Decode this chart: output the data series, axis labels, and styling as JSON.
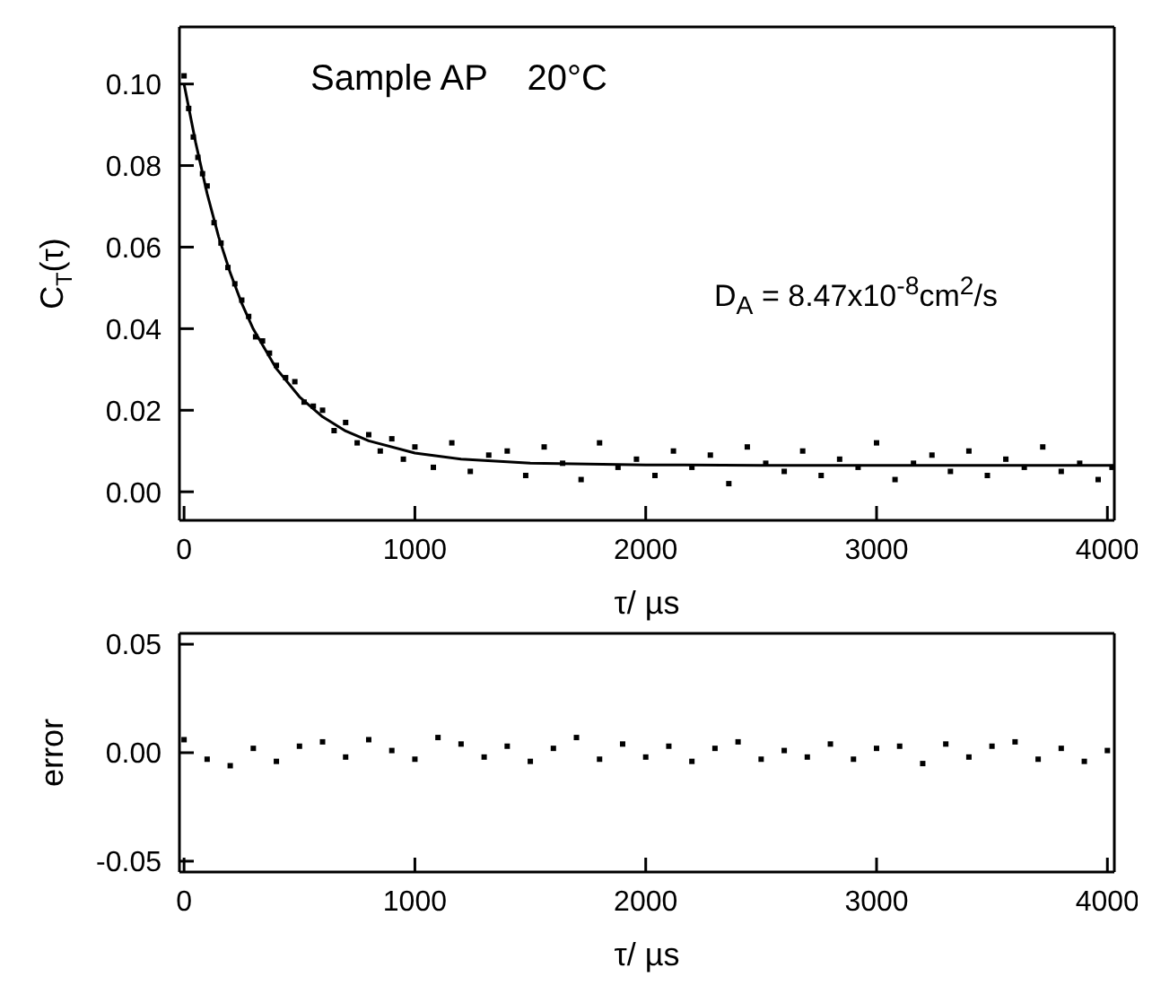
{
  "chart_data": [
    {
      "type": "scatter",
      "ylabel": "C$_{T}$(τ)",
      "xlabel": "τ/ µs",
      "annotations": [
        "Sample AP    20°C",
        "D$_{A}$ = 8.47x10$^{-8}$cm$^{2}$/s"
      ],
      "xlim": [
        -20,
        4030
      ],
      "xticks": [
        0,
        1000,
        2000,
        3000,
        4000
      ],
      "ylim": [
        -0.007,
        0.114
      ],
      "yticks": [
        {
          "value": 0,
          "label": "0.00"
        },
        {
          "value": 0.02,
          "label": "0.02"
        },
        {
          "value": 0.04,
          "label": "0.04"
        },
        {
          "value": 0.06,
          "label": "0.06"
        },
        {
          "value": 0.08,
          "label": "0.08"
        },
        {
          "value": 0.1,
          "label": "0.10"
        }
      ],
      "grid": false,
      "legend": false,
      "series": [
        {
          "color": "#000000",
          "marker": "square",
          "x": [
            0,
            20,
            40,
            60,
            80,
            100,
            130,
            160,
            190,
            220,
            250,
            280,
            310,
            340,
            370,
            400,
            440,
            480,
            520,
            560,
            600,
            650,
            700,
            750,
            800,
            850,
            900,
            950,
            1000,
            1080,
            1160,
            1240,
            1320,
            1400,
            1480,
            1560,
            1640,
            1720,
            1800,
            1880,
            1960,
            2040,
            2120,
            2200,
            2280,
            2360,
            2440,
            2520,
            2600,
            2680,
            2760,
            2840,
            2920,
            3000,
            3080,
            3160,
            3240,
            3320,
            3400,
            3480,
            3560,
            3640,
            3720,
            3800,
            3880,
            3960,
            4020
          ],
          "values": [
            0.102,
            0.094,
            0.087,
            0.082,
            0.078,
            0.075,
            0.066,
            0.061,
            0.055,
            0.051,
            0.047,
            0.043,
            0.038,
            0.037,
            0.034,
            0.031,
            0.028,
            0.027,
            0.022,
            0.021,
            0.02,
            0.015,
            0.017,
            0.012,
            0.014,
            0.01,
            0.013,
            0.008,
            0.011,
            0.006,
            0.012,
            0.005,
            0.009,
            0.01,
            0.004,
            0.011,
            0.007,
            0.003,
            0.012,
            0.006,
            0.008,
            0.004,
            0.01,
            0.006,
            0.009,
            0.002,
            0.011,
            0.007,
            0.005,
            0.01,
            0.004,
            0.008,
            0.006,
            0.012,
            0.003,
            0.007,
            0.009,
            0.005,
            0.01,
            0.004,
            0.008,
            0.006,
            0.011,
            0.005,
            0.007,
            0.003,
            0.006
          ]
        },
        {
          "type": "line",
          "color": "#000000",
          "marker": "none",
          "line_style": "solid",
          "x": [
            0,
            50,
            100,
            150,
            200,
            250,
            300,
            400,
            500,
            600,
            700,
            800,
            1000,
            1200,
            1500,
            2000,
            2500,
            3000,
            3500,
            4030
          ],
          "values": [
            0.1,
            0.0857,
            0.0731,
            0.0625,
            0.0537,
            0.0462,
            0.0399,
            0.0302,
            0.0233,
            0.0184,
            0.0149,
            0.0125,
            0.0095,
            0.008,
            0.007,
            0.0066,
            0.0065,
            0.0065,
            0.0065,
            0.0065
          ]
        }
      ]
    },
    {
      "type": "scatter",
      "ylabel": "error",
      "xlabel": "τ/ µs",
      "xlim": [
        -20,
        4030
      ],
      "xticks": [
        0,
        1000,
        2000,
        3000,
        4000
      ],
      "ylim": [
        -0.055,
        0.055
      ],
      "yticks": [
        {
          "value": -0.05,
          "label": "-0.05"
        },
        {
          "value": 0,
          "label": "0.00"
        },
        {
          "value": 0.05,
          "label": "0.05"
        }
      ],
      "grid": false,
      "legend": false,
      "series": [
        {
          "color": "#000000",
          "marker": "square",
          "x": [
            0,
            100,
            200,
            300,
            400,
            500,
            600,
            700,
            800,
            900,
            1000,
            1100,
            1200,
            1300,
            1400,
            1500,
            1600,
            1700,
            1800,
            1900,
            2000,
            2100,
            2200,
            2300,
            2400,
            2500,
            2600,
            2700,
            2800,
            2900,
            3000,
            3100,
            3200,
            3300,
            3400,
            3500,
            3600,
            3700,
            3800,
            3900,
            4000
          ],
          "values": [
            0.006,
            -0.003,
            -0.006,
            0.002,
            -0.004,
            0.003,
            0.005,
            -0.002,
            0.006,
            0.001,
            -0.003,
            0.007,
            0.004,
            -0.002,
            0.003,
            -0.004,
            0.002,
            0.007,
            -0.003,
            0.004,
            -0.002,
            0.003,
            -0.004,
            0.002,
            0.005,
            -0.003,
            0.001,
            -0.002,
            0.004,
            -0.003,
            0.002,
            0.003,
            -0.005,
            0.004,
            -0.002,
            0.003,
            0.005,
            -0.003,
            0.002,
            -0.004,
            0.001
          ]
        }
      ]
    }
  ]
}
